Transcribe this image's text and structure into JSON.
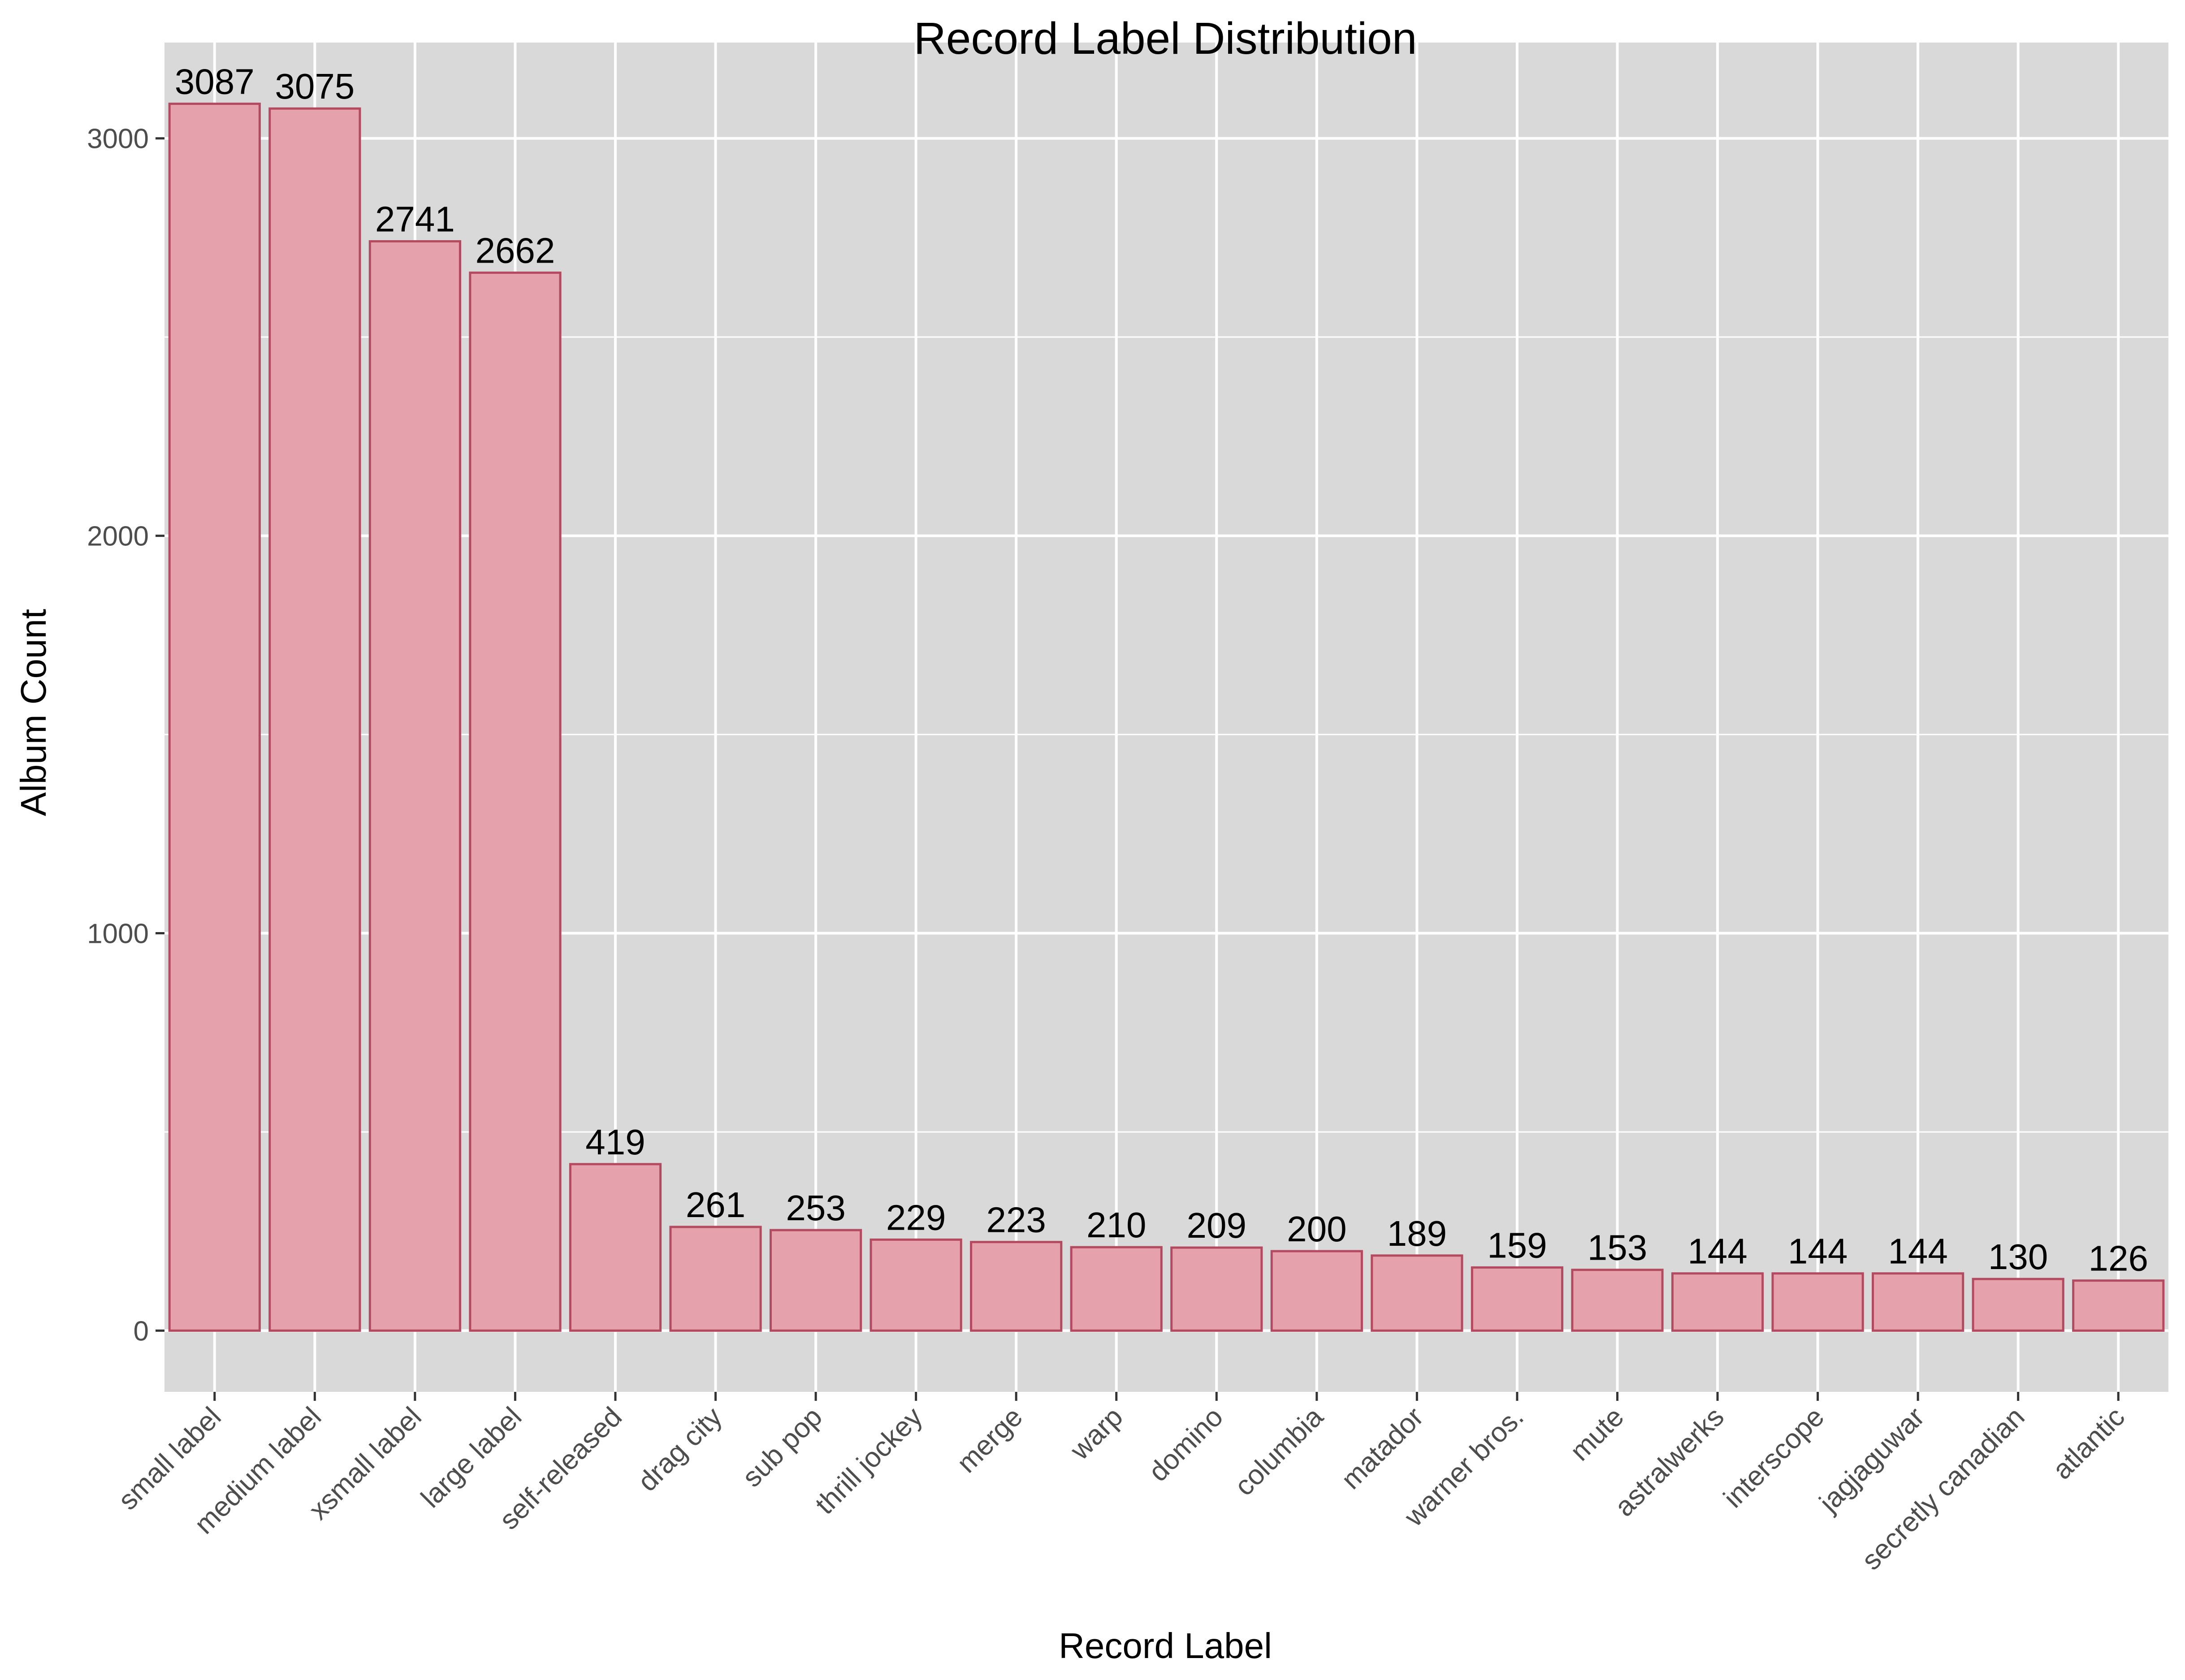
{
  "chart_data": {
    "type": "bar",
    "title": "Record Label Distribution",
    "xlabel": "Record Label",
    "ylabel": "Album Count",
    "categories": [
      "small label",
      "medium label",
      "xsmall label",
      "large label",
      "self-released",
      "drag city",
      "sub pop",
      "thrill jockey",
      "merge",
      "warp",
      "domino",
      "columbia",
      "matador",
      "warner bros.",
      "mute",
      "astralwerks",
      "interscope",
      "jagjaguwar",
      "secretly canadian",
      "atlantic"
    ],
    "values": [
      3087,
      3075,
      2741,
      2662,
      419,
      261,
      253,
      229,
      223,
      210,
      209,
      200,
      189,
      159,
      153,
      144,
      144,
      144,
      130,
      126
    ],
    "data_labels": [
      "3087",
      "3075",
      "2741",
      "2662",
      "419",
      "261",
      "253",
      "229",
      "223",
      "210",
      "209",
      "200",
      "189",
      "159",
      "153",
      "144",
      "144",
      "144",
      "130",
      "126"
    ],
    "yticks": [
      0,
      1000,
      2000,
      3000
    ],
    "ytick_labels": [
      "0",
      "1000",
      "2000",
      "3000"
    ],
    "ylim": [
      -154,
      3241
    ],
    "grid": true,
    "legend": "none",
    "colors": {
      "bar_fill": "#e5a2ad",
      "bar_stroke": "#b44a5f",
      "panel": "#d9d9d9",
      "grid": "#ffffff"
    }
  }
}
